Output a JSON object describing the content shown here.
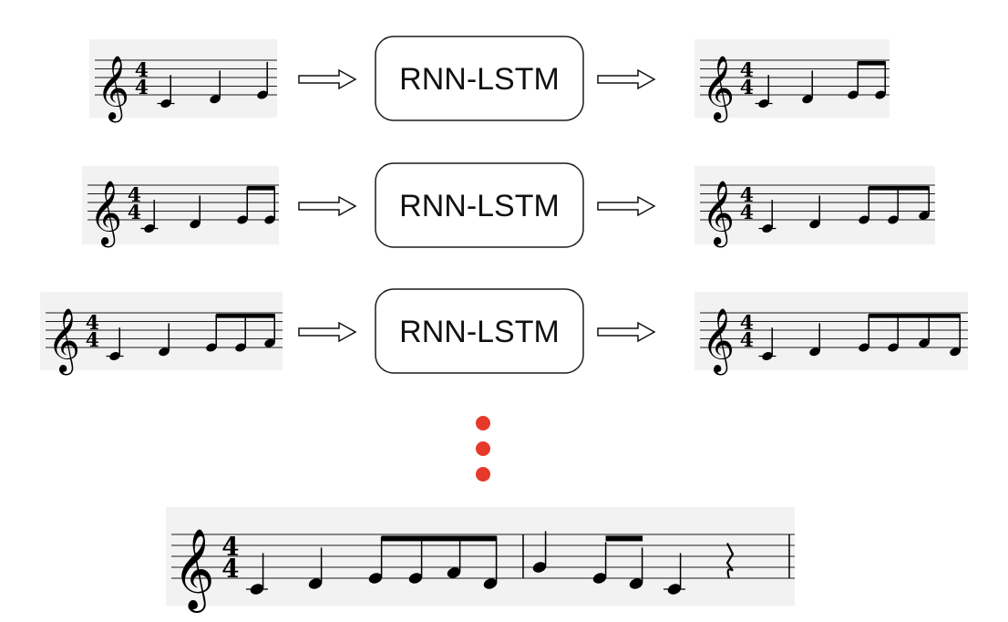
{
  "model": {
    "label": "RNN-LSTM"
  },
  "colors": {
    "dots": "#e53a2b",
    "box_stroke": "#1a1a1a",
    "staff_bg": "#f3f2f2"
  },
  "music": {
    "clef": "treble-clef",
    "clef_glyph": "𝄞",
    "time_signature": {
      "top": "4",
      "bottom": "4"
    }
  },
  "rows": [
    {
      "input_notes": [
        "C4",
        "D4",
        "E4"
      ],
      "output_notes": [
        "C4",
        "D4",
        "E4",
        "E4"
      ]
    },
    {
      "input_notes": [
        "C4",
        "D4",
        "E4",
        "E4"
      ],
      "output_notes": [
        "C4",
        "D4",
        "E4",
        "E4",
        "F4"
      ]
    },
    {
      "input_notes": [
        "C4",
        "D4",
        "E4",
        "E4",
        "F4"
      ],
      "output_notes": [
        "C4",
        "D4",
        "E4",
        "E4",
        "F4",
        "D4"
      ]
    }
  ],
  "continuation": {
    "dot_count": 3
  },
  "final_sequence": {
    "measure1": [
      "C4",
      "D4",
      "E4",
      "E4",
      "F4",
      "D4"
    ],
    "measure2": [
      "G4",
      "E4",
      "D4",
      "C4",
      "rest"
    ]
  }
}
